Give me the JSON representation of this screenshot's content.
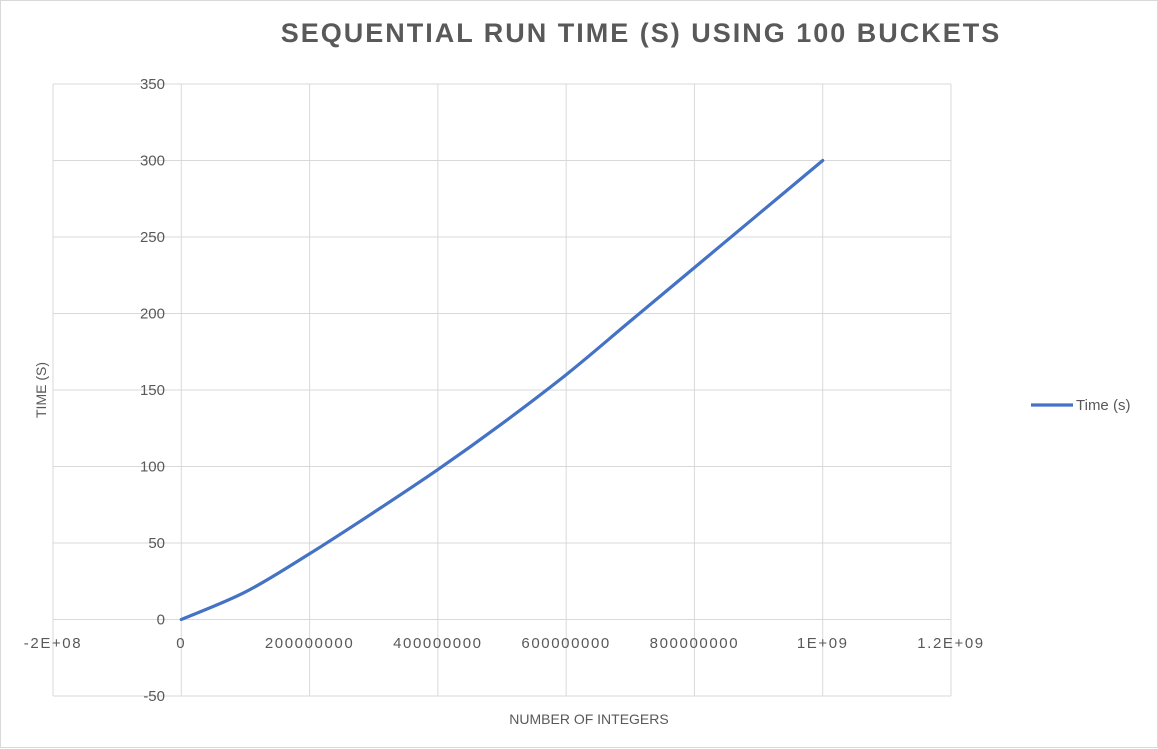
{
  "chart_data": {
    "type": "line",
    "title": "SEQUENTIAL RUN TIME (S) USING 100 BUCKETS",
    "xlabel": "NUMBER OF INTEGERS",
    "ylabel": "TIME (S)",
    "xlim": [
      -200000000,
      1200000000
    ],
    "ylim": [
      -50,
      350
    ],
    "x_tick_values": [
      -200000000,
      0,
      200000000,
      400000000,
      600000000,
      800000000,
      1000000000,
      1200000000
    ],
    "x_tick_labels": [
      "-2E+08",
      "0",
      "200000000",
      "400000000",
      "600000000",
      "800000000",
      "1E+09",
      "1.2E+09"
    ],
    "y_ticks": [
      -50,
      0,
      50,
      100,
      150,
      200,
      250,
      300,
      350
    ],
    "grid": true,
    "legend_position": "right",
    "series": [
      {
        "name": "Time (s)",
        "color": "#4472c4",
        "x": [
          0,
          100000000,
          200000000,
          300000000,
          400000000,
          500000000,
          600000000,
          700000000,
          800000000,
          900000000,
          1000000000
        ],
        "y": [
          0,
          18,
          43,
          70,
          98,
          128,
          160,
          195,
          230,
          265,
          300
        ]
      }
    ]
  }
}
